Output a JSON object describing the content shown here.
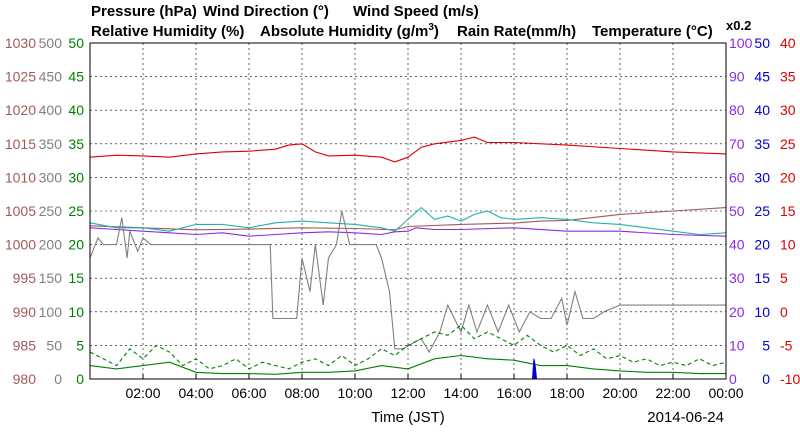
{
  "colors": {
    "pressure": "#a05a5a",
    "wind_direction": "#808080",
    "wind_speed": "#008000",
    "relative_humidity": "#8a2be2",
    "absolute_humidity": "#20b2aa",
    "rain_rate": "#0000cc",
    "temperature": "#dd0000",
    "grid": "#000000"
  },
  "chart_data": {
    "type": "line",
    "date": "2014-06-24",
    "xlabel": "Time (JST)",
    "x_ticks": [
      "02:00",
      "04:00",
      "06:00",
      "08:00",
      "10:00",
      "12:00",
      "14:00",
      "16:00",
      "18:00",
      "20:00",
      "22:00",
      "00:00"
    ],
    "x_range_hours": [
      0,
      24
    ],
    "grid": true,
    "legend": {
      "line1": [
        {
          "key": "pressure",
          "label": "Pressure (hPa)"
        },
        {
          "key": "wind_direction",
          "label": "Wind Direction (°)"
        },
        {
          "key": "wind_speed",
          "label": "Wind Speed (m/s)"
        }
      ],
      "line2": [
        {
          "key": "relative_humidity",
          "label": "Relative Humidity (%)"
        },
        {
          "key": "absolute_humidity",
          "label": "Absolute Humidity (g/m"
        },
        {
          "key": "rain_rate",
          "label": "Rain Rate(mm/h)"
        },
        {
          "key": "temperature",
          "label": "Temperature (°C)"
        }
      ],
      "abs_humidity_superscript": "3",
      "abs_humidity_close": ")",
      "scale_note": "x0.2"
    },
    "axes": {
      "pressure": {
        "range": [
          980,
          1030
        ],
        "ticks": [
          "980",
          "985",
          "990",
          "995",
          "1000",
          "1005",
          "1010",
          "1015",
          "1020",
          "1025",
          "1030"
        ]
      },
      "wind_direction": {
        "range": [
          0,
          500
        ],
        "ticks": [
          "0",
          "50",
          "100",
          "150",
          "200",
          "250",
          "300",
          "350",
          "400",
          "450",
          "500"
        ]
      },
      "wind_speed": {
        "range": [
          0,
          50
        ],
        "ticks": [
          "0",
          "5",
          "10",
          "15",
          "20",
          "25",
          "30",
          "35",
          "40",
          "45",
          "50"
        ]
      },
      "relative_humidity": {
        "range": [
          0,
          100
        ],
        "ticks": [
          "0",
          "10",
          "20",
          "30",
          "40",
          "50",
          "60",
          "70",
          "80",
          "90",
          "100"
        ]
      },
      "rain_rate": {
        "range": [
          0,
          50
        ],
        "ticks": [
          "0",
          "5",
          "10",
          "15",
          "20",
          "25",
          "30",
          "35",
          "40",
          "45",
          "50"
        ]
      },
      "temperature": {
        "range": [
          -10,
          40
        ],
        "ticks": [
          "-10",
          "-5",
          "0",
          "5",
          "10",
          "15",
          "20",
          "25",
          "30",
          "35",
          "40"
        ]
      }
    },
    "series": [
      {
        "key": "temperature",
        "axis": "temperature",
        "x": [
          0,
          1,
          2,
          3,
          4,
          5,
          6,
          7,
          7.5,
          8,
          8.5,
          9,
          10,
          11,
          11.5,
          12,
          12.5,
          13,
          14,
          14.5,
          15,
          16,
          18,
          20,
          22,
          24
        ],
        "y": [
          23,
          23.3,
          23.2,
          23.0,
          23.5,
          23.8,
          23.9,
          24.2,
          24.8,
          25.0,
          23.8,
          23.2,
          23.3,
          23.0,
          22.3,
          23.0,
          24.5,
          25.0,
          25.5,
          26.0,
          25.2,
          25.2,
          24.8,
          24.3,
          23.8,
          23.5
        ]
      },
      {
        "key": "pressure",
        "axis": "pressure",
        "x": [
          0,
          2,
          4,
          6,
          8,
          10,
          11.5,
          12,
          14,
          16,
          17,
          18,
          20,
          22,
          24
        ],
        "y": [
          1002.8,
          1002.5,
          1002.2,
          1002.3,
          1002.5,
          1002.4,
          1002.2,
          1002.7,
          1003.0,
          1003.2,
          1003.5,
          1003.6,
          1004.5,
          1005.0,
          1005.5
        ]
      },
      {
        "key": "relative_humidity",
        "axis": "relative_humidity",
        "x": [
          0,
          1,
          2,
          3,
          4,
          5,
          6,
          7,
          8,
          9,
          10,
          11,
          11.5,
          12,
          12.3,
          13,
          14,
          16,
          18,
          20,
          22,
          24
        ],
        "y": [
          45,
          44.5,
          44,
          43.5,
          43,
          43.5,
          42.5,
          43,
          43.5,
          43.8,
          43.5,
          43,
          43.8,
          44,
          45,
          44.5,
          44.5,
          45,
          44,
          44,
          43,
          42.5
        ]
      },
      {
        "key": "absolute_humidity",
        "axis": "absolute_humidity",
        "x": [
          0,
          1,
          2,
          3,
          4,
          5,
          6,
          7,
          8,
          9,
          10,
          11,
          11.5,
          12,
          12.5,
          13,
          13.5,
          14,
          14.5,
          15,
          15.5,
          16,
          17,
          18,
          19,
          20,
          21,
          22,
          23,
          24
        ],
        "y": [
          9.3,
          9.0,
          9.0,
          8.8,
          9.2,
          9.2,
          9.0,
          9.3,
          9.4,
          9.3,
          9.2,
          9.0,
          8.8,
          9.5,
          10.2,
          9.5,
          9.7,
          9.4,
          9.8,
          10.0,
          9.6,
          9.5,
          9.6,
          9.5,
          9.3,
          9.2,
          9.0,
          8.8,
          8.6,
          8.7
        ]
      },
      {
        "key": "wind_direction",
        "axis": "wind_direction",
        "x": [
          0,
          0.3,
          0.5,
          1.0,
          1.2,
          1.4,
          1.5,
          1.8,
          2.0,
          2.3,
          2.6,
          3,
          4,
          5,
          6,
          6.8,
          6.9,
          7.8,
          8.0,
          8.3,
          8.5,
          8.8,
          9.0,
          9.3,
          9.5,
          9.8,
          10.0,
          10.4,
          10.8,
          11.0,
          11.3,
          11.5,
          11.8,
          12.5,
          12.8,
          13.2,
          13.5,
          14,
          14.3,
          14.6,
          15,
          15.4,
          15.8,
          16.2,
          16.6,
          17,
          17.4,
          17.8,
          18.0,
          18.3,
          18.6,
          19.0,
          19.4,
          20,
          22,
          24
        ],
        "y": [
          180,
          210,
          200,
          200,
          240,
          180,
          220,
          190,
          210,
          200,
          200,
          200,
          200,
          200,
          200,
          200,
          90,
          90,
          180,
          130,
          200,
          110,
          180,
          200,
          250,
          200,
          200,
          200,
          200,
          180,
          130,
          45,
          45,
          60,
          40,
          70,
          110,
          70,
          110,
          70,
          110,
          70,
          110,
          70,
          100,
          90,
          90,
          120,
          80,
          130,
          90,
          90,
          100,
          110,
          110,
          110
        ]
      },
      {
        "key": "wind_speed",
        "axis": "wind_speed",
        "x": [
          0,
          1,
          2,
          3,
          4,
          5,
          6,
          7,
          8,
          9,
          10,
          11,
          12,
          13,
          14,
          15,
          16,
          17,
          18,
          19,
          20,
          21,
          22,
          23,
          24
        ],
        "y": [
          2,
          1.5,
          2,
          2.5,
          1,
          0.8,
          0.8,
          0.7,
          1,
          1,
          1.2,
          2,
          1.5,
          3,
          3.5,
          3,
          2.8,
          2,
          2,
          1.5,
          1.2,
          1,
          1,
          0.8,
          0.8
        ]
      },
      {
        "key": "wind_speed_gust",
        "axis": "wind_speed",
        "dashed": true,
        "color_key": "wind_speed",
        "x": [
          0,
          0.5,
          1,
          1.5,
          2,
          2.5,
          3,
          3.5,
          4,
          4.5,
          5,
          5.5,
          6,
          6.5,
          7,
          7.5,
          8,
          8.5,
          9,
          9.5,
          10,
          10.5,
          11,
          11.5,
          12,
          12.5,
          13,
          13.5,
          14,
          14.5,
          15,
          15.5,
          16,
          16.5,
          17,
          17.5,
          18,
          18.5,
          19,
          19.5,
          20,
          20.5,
          21,
          21.5,
          22,
          22.5,
          23,
          23.5,
          24
        ],
        "y": [
          4,
          3,
          2,
          4.5,
          3,
          5,
          4,
          2,
          3,
          1.5,
          2,
          3,
          1.5,
          2.5,
          2,
          1.5,
          2.5,
          3,
          2,
          3.5,
          2,
          3,
          4.5,
          3.5,
          5,
          6,
          7,
          6.5,
          8,
          6,
          7,
          6,
          5,
          6.5,
          5,
          4,
          5,
          3.5,
          4.5,
          3,
          3.5,
          2.5,
          3,
          2,
          2.5,
          2,
          3,
          2,
          2.5
        ]
      },
      {
        "key": "rain_rate",
        "axis": "rain_rate",
        "x": [
          16.7,
          16.75,
          16.8,
          16.85
        ],
        "y": [
          0,
          3,
          2,
          0
        ]
      }
    ]
  }
}
